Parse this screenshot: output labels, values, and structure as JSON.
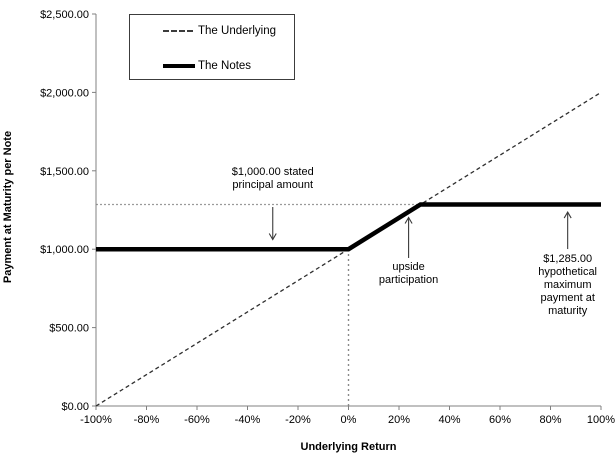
{
  "chart_data": {
    "type": "line",
    "title": "",
    "xlabel": "Underlying Return",
    "ylabel": "Payment at Maturity per Note",
    "xlim": [
      -100,
      100
    ],
    "ylim": [
      0,
      2500
    ],
    "grid": false,
    "legend_position": "top-left-inside",
    "x_ticks": [
      "-100%",
      "-80%",
      "-60%",
      "-40%",
      "-20%",
      "0%",
      "20%",
      "40%",
      "60%",
      "80%",
      "100%"
    ],
    "x_tick_values": [
      -100,
      -80,
      -60,
      -40,
      -20,
      0,
      20,
      40,
      60,
      80,
      100
    ],
    "y_ticks": [
      "$0.00",
      "$500.00",
      "$1,000.00",
      "$1,500.00",
      "$2,000.00",
      "$2,500.00"
    ],
    "y_tick_values": [
      0,
      500,
      1000,
      1500,
      2000,
      2500
    ],
    "series": [
      {
        "name": "The Underlying",
        "style": "dashed",
        "color": "#2e2e2e",
        "width": 1.3,
        "dash": "4 3",
        "points": [
          [
            -100,
            0
          ],
          [
            100,
            2000
          ]
        ]
      },
      {
        "name": "The Notes",
        "style": "solid-thick",
        "color": "#000000",
        "width": 4.5,
        "points": [
          [
            -100,
            1000
          ],
          [
            0,
            1000
          ],
          [
            28.5,
            1285
          ],
          [
            100,
            1285
          ]
        ]
      }
    ],
    "reference_lines": [
      {
        "orientation": "horizontal",
        "payment": 1285,
        "from_x": -100,
        "to_x": 28.5
      },
      {
        "orientation": "vertical",
        "return": 0,
        "from_payment": 0,
        "to_payment": 1000
      }
    ],
    "annotations": [
      {
        "lines": [
          "$1,000.00 stated",
          "principal amount"
        ],
        "x": -30,
        "text_baseline_payment": 1473,
        "arrow": {
          "dir": "down",
          "from_payment": 1269,
          "to_payment": 1062
        }
      },
      {
        "lines": [
          "upside",
          "participation"
        ],
        "x": 23.8,
        "text_baseline_payment": 867,
        "arrow": {
          "dir": "up",
          "from_payment": 944,
          "to_payment": 1202
        }
      },
      {
        "lines": [
          "$1,285.00",
          "hypothetical",
          "maximum",
          "payment at",
          "maturity"
        ],
        "x": 86.8,
        "text_baseline_payment": 918,
        "arrow": {
          "dir": "up",
          "from_payment": 1001,
          "to_payment": 1237
        }
      }
    ]
  }
}
